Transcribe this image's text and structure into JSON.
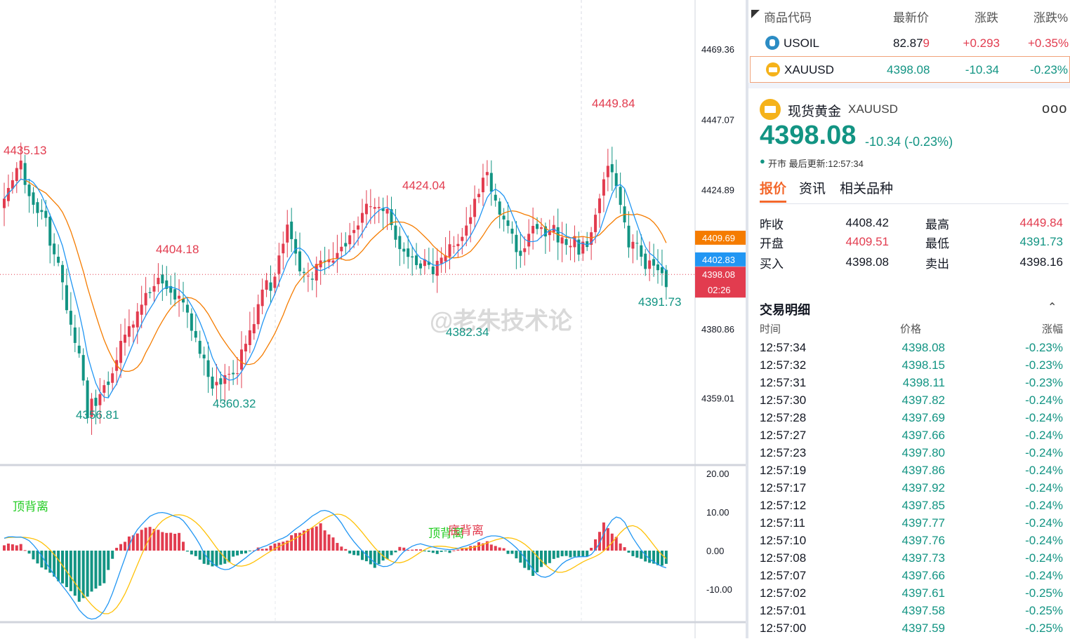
{
  "chart": {
    "price_axis": [
      "4469.36",
      "4447.07",
      "4424.89",
      "4380.86",
      "4359.01"
    ],
    "tags": {
      "orange": "4409.69",
      "blue": "4402.83",
      "red_price": "4398.08",
      "countdown": "02:26"
    },
    "annotations": [
      "4435.13",
      "4404.18",
      "4424.04",
      "4449.84",
      "4356.81",
      "4360.32",
      "4382.34",
      "4391.73"
    ],
    "macd_axis": [
      "20.00",
      "10.00",
      "0.00",
      "-10.00"
    ],
    "macd_labels": {
      "top_div_1": "顶背离",
      "top_div_2": "顶背离",
      "bottom_div": "底背离"
    },
    "watermark": "@老朱技术论",
    "colors": {
      "up": "#e23c4f",
      "down": "#129483",
      "ma_fast": "#2196f3",
      "ma_slow": "#f57c00",
      "macd_signal": "#ffc107"
    }
  },
  "watchlist": {
    "headers": {
      "symbol": "商品代码",
      "last": "最新价",
      "change": "涨跌",
      "change_pct": "涨跌%"
    },
    "rows": [
      {
        "symbol": "USOIL",
        "last": "82.87",
        "last_tail": "9",
        "change": "+0.293",
        "change_pct": "+0.35%"
      },
      {
        "symbol": "XAUUSD",
        "last": "4398.08",
        "change": "-10.34",
        "change_pct": "-0.23%"
      }
    ]
  },
  "detail": {
    "name": "现货黄金",
    "code": "XAUUSD",
    "more": "ooo",
    "price": "4398.08",
    "change": "-10.34 (-0.23%)",
    "status_dot": "●",
    "status": "开市  最后更新:12:57:34",
    "tabs": [
      "报价",
      "资讯",
      "相关品种"
    ],
    "quote": {
      "prev_close_label": "昨收",
      "prev_close": "4408.42",
      "high_label": "最高",
      "high": "4449.84",
      "open_label": "开盘",
      "open": "4409.51",
      "low_label": "最低",
      "low": "4391.73",
      "bid_label": "买入",
      "bid": "4398.08",
      "ask_label": "卖出",
      "ask": "4398.16"
    }
  },
  "trades": {
    "title": "交易明细",
    "headers": {
      "time": "时间",
      "price": "价格",
      "pct": "涨幅"
    },
    "rows": [
      {
        "time": "12:57:34",
        "price": "4398.08",
        "pct": "-0.23%"
      },
      {
        "time": "12:57:32",
        "price": "4398.15",
        "pct": "-0.23%"
      },
      {
        "time": "12:57:31",
        "price": "4398.11",
        "pct": "-0.23%"
      },
      {
        "time": "12:57:30",
        "price": "4397.82",
        "pct": "-0.24%"
      },
      {
        "time": "12:57:28",
        "price": "4397.69",
        "pct": "-0.24%"
      },
      {
        "time": "12:57:27",
        "price": "4397.66",
        "pct": "-0.24%"
      },
      {
        "time": "12:57:23",
        "price": "4397.80",
        "pct": "-0.24%"
      },
      {
        "time": "12:57:19",
        "price": "4397.86",
        "pct": "-0.24%"
      },
      {
        "time": "12:57:17",
        "price": "4397.92",
        "pct": "-0.24%"
      },
      {
        "time": "12:57:12",
        "price": "4397.85",
        "pct": "-0.24%"
      },
      {
        "time": "12:57:11",
        "price": "4397.77",
        "pct": "-0.24%"
      },
      {
        "time": "12:57:10",
        "price": "4397.76",
        "pct": "-0.24%"
      },
      {
        "time": "12:57:08",
        "price": "4397.73",
        "pct": "-0.24%"
      },
      {
        "time": "12:57:07",
        "price": "4397.66",
        "pct": "-0.24%"
      },
      {
        "time": "12:57:02",
        "price": "4397.61",
        "pct": "-0.25%"
      },
      {
        "time": "12:57:01",
        "price": "4397.58",
        "pct": "-0.25%"
      },
      {
        "time": "12:57:00",
        "price": "4397.59",
        "pct": "-0.25%"
      }
    ]
  },
  "chart_data": {
    "type": "candlestick",
    "symbol": "XAUUSD",
    "price_range": [
      4350,
      4475
    ],
    "anchors": [
      {
        "i": 0,
        "p": 4418
      },
      {
        "i": 4,
        "p": 4433
      },
      {
        "i": 10,
        "p": 4416
      },
      {
        "i": 20,
        "p": 4357
      },
      {
        "i": 27,
        "p": 4370
      },
      {
        "i": 37,
        "p": 4400
      },
      {
        "i": 43,
        "p": 4386
      },
      {
        "i": 50,
        "p": 4363
      },
      {
        "i": 58,
        "p": 4372
      },
      {
        "i": 68,
        "p": 4414
      },
      {
        "i": 73,
        "p": 4394
      },
      {
        "i": 79,
        "p": 4404
      },
      {
        "i": 85,
        "p": 4417
      },
      {
        "i": 90,
        "p": 4419
      },
      {
        "i": 97,
        "p": 4406
      },
      {
        "i": 103,
        "p": 4398
      },
      {
        "i": 109,
        "p": 4408
      },
      {
        "i": 115,
        "p": 4430
      },
      {
        "i": 123,
        "p": 4404
      },
      {
        "i": 128,
        "p": 4416
      },
      {
        "i": 134,
        "p": 4406
      },
      {
        "i": 140,
        "p": 4409
      },
      {
        "i": 145,
        "p": 4436
      },
      {
        "i": 150,
        "p": 4406
      },
      {
        "i": 155,
        "p": 4403
      },
      {
        "i": 159,
        "p": 4398
      }
    ],
    "macd_range": [
      -15,
      22
    ],
    "macd_anchors": [
      {
        "i": 0,
        "v": 1.0
      },
      {
        "i": 4,
        "v": 2.0
      },
      {
        "i": 7,
        "v": -2.0
      },
      {
        "i": 18,
        "v": -13.0
      },
      {
        "i": 24,
        "v": -8.0
      },
      {
        "i": 27,
        "v": 0.5
      },
      {
        "i": 34,
        "v": 6.5
      },
      {
        "i": 42,
        "v": 4.0
      },
      {
        "i": 44,
        "v": -0.5
      },
      {
        "i": 50,
        "v": -4.0
      },
      {
        "i": 58,
        "v": -1.0
      },
      {
        "i": 64,
        "v": 1.5
      },
      {
        "i": 76,
        "v": 6.5
      },
      {
        "i": 83,
        "v": -0.5
      },
      {
        "i": 89,
        "v": -4.5
      },
      {
        "i": 95,
        "v": 1.0
      },
      {
        "i": 104,
        "v": -1.0
      },
      {
        "i": 110,
        "v": 1.0
      },
      {
        "i": 116,
        "v": 2.0
      },
      {
        "i": 122,
        "v": -0.8
      },
      {
        "i": 127,
        "v": -6.0
      },
      {
        "i": 133,
        "v": -2.0
      },
      {
        "i": 140,
        "v": -1.0
      },
      {
        "i": 144,
        "v": 7.0
      },
      {
        "i": 150,
        "v": -1.0
      },
      {
        "i": 159,
        "v": -4.0
      }
    ]
  }
}
